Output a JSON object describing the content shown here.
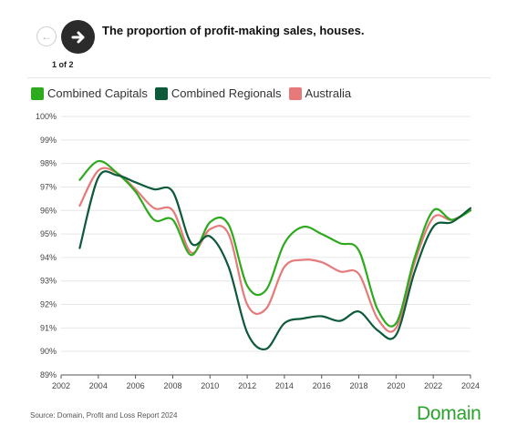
{
  "nav": {
    "pager": "1 of 2"
  },
  "header": {
    "title": "The proportion of profit-making sales, houses."
  },
  "footer": {
    "source": "Source: Domain, Profit and Loss Report 2024",
    "logo": "Domain"
  },
  "colors": {
    "capitals": "#2eaa1e",
    "regionals": "#0d5a3a",
    "australia": "#e67a7a"
  },
  "chart_data": {
    "type": "line",
    "title": "The proportion of profit-making sales, houses.",
    "xlim": [
      2002,
      2024
    ],
    "ylim": [
      89,
      100
    ],
    "x_ticks": [
      "2002",
      "2004",
      "2006",
      "2008",
      "2010",
      "2012",
      "2014",
      "2016",
      "2018",
      "2020",
      "2022",
      "2024"
    ],
    "y_ticks": [
      "89%",
      "90%",
      "91%",
      "92%",
      "93%",
      "94%",
      "95%",
      "96%",
      "97%",
      "98%",
      "99%",
      "100%"
    ],
    "grid": "horizontal",
    "legend_position": "top-left",
    "x": [
      2003,
      2004,
      2005,
      2006,
      2007,
      2008,
      2009,
      2010,
      2011,
      2012,
      2013,
      2014,
      2015,
      2016,
      2017,
      2018,
      2019,
      2020,
      2021,
      2022,
      2023,
      2024
    ],
    "series": [
      {
        "name": "Combined Capitals",
        "color": "#2eaa1e",
        "values": [
          97.3,
          98.1,
          97.6,
          96.8,
          95.6,
          95.6,
          94.1,
          95.5,
          95.4,
          92.8,
          92.6,
          94.6,
          95.3,
          95.0,
          94.6,
          94.3,
          91.8,
          91.2,
          94.0,
          96.0,
          95.6,
          96.0
        ]
      },
      {
        "name": "Combined Regionals",
        "color": "#0d5a3a",
        "values": [
          94.4,
          97.4,
          97.5,
          97.2,
          96.9,
          96.8,
          94.6,
          94.9,
          93.6,
          90.8,
          90.1,
          91.2,
          91.4,
          91.5,
          91.3,
          91.7,
          90.9,
          90.7,
          93.4,
          95.3,
          95.5,
          96.1
        ]
      },
      {
        "name": "Australia",
        "color": "#e67a7a",
        "values": [
          96.2,
          97.7,
          97.6,
          96.9,
          96.1,
          96.0,
          94.2,
          95.2,
          95.0,
          92.0,
          91.8,
          93.6,
          93.9,
          93.8,
          93.4,
          93.3,
          91.4,
          91.0,
          93.8,
          95.7,
          95.6,
          96.0
        ]
      }
    ]
  }
}
